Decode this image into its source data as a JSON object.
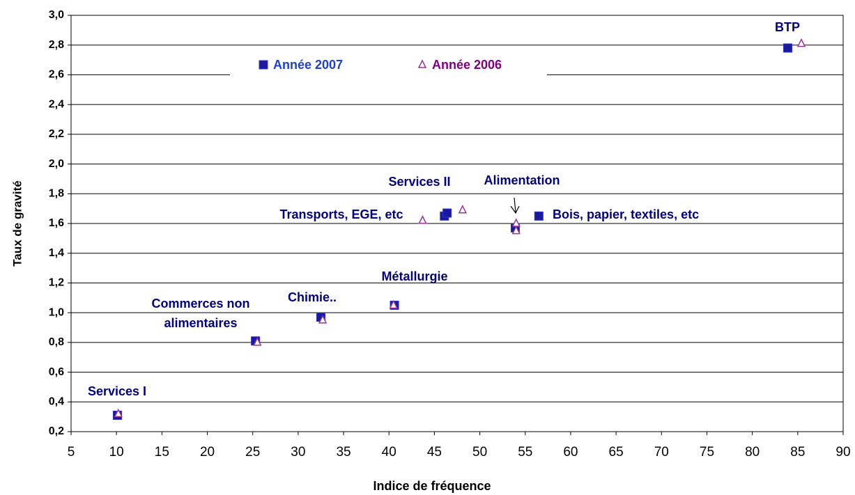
{
  "chart_data": {
    "type": "scatter",
    "xlabel": "Indice de fréquence",
    "ylabel": "Taux de gravité",
    "xlim": [
      5,
      90
    ],
    "xticks": [
      5,
      10,
      15,
      20,
      25,
      30,
      35,
      40,
      45,
      50,
      55,
      60,
      65,
      70,
      75,
      80,
      85,
      90
    ],
    "ylim": [
      0.2,
      3.0
    ],
    "yticks": [
      {
        "value": 0.2,
        "label": "0,2"
      },
      {
        "value": 0.4,
        "label": "0,4"
      },
      {
        "value": 0.6,
        "label": "0,6"
      },
      {
        "value": 0.8,
        "label": "0,8"
      },
      {
        "value": 1.0,
        "label": "1,0"
      },
      {
        "value": 1.2,
        "label": "1,2"
      },
      {
        "value": 1.4,
        "label": "1,4"
      },
      {
        "value": 1.6,
        "label": "1,6"
      },
      {
        "value": 1.8,
        "label": "1,8"
      },
      {
        "value": 2.0,
        "label": "2,0"
      },
      {
        "value": 2.2,
        "label": "2,2"
      },
      {
        "value": 2.4,
        "label": "2,4"
      },
      {
        "value": 2.6,
        "label": "2,6"
      },
      {
        "value": 2.8,
        "label": "2,8"
      },
      {
        "value": 3.0,
        "label": "3,0"
      }
    ],
    "grid": true,
    "legend": "top",
    "series": [
      {
        "name": "Année 2007",
        "color": "#1a1a9e",
        "marker": "square",
        "x": [
          10.1,
          25.3,
          32.5,
          40.6,
          46.1,
          46.4,
          53.9,
          56.5,
          83.9
        ],
        "values": [
          0.31,
          0.81,
          0.97,
          1.05,
          1.65,
          1.67,
          1.57,
          1.65,
          2.78
        ]
      },
      {
        "name": "Année 2006",
        "color": "#993399",
        "marker": "triangle",
        "x": [
          10.2,
          25.5,
          32.7,
          40.5,
          43.7,
          48.1,
          54.0,
          54.0,
          85.4
        ],
        "values": [
          0.32,
          0.8,
          0.95,
          1.05,
          1.62,
          1.69,
          1.6,
          1.55,
          2.81
        ]
      }
    ],
    "annotations": [
      "Services I",
      "Commerces non",
      "alimentaires",
      "Chimie..",
      "Métallurgie",
      "Transports, EGE, etc",
      "Services II",
      "Alimentation",
      "Bois, papier, textiles, etc",
      "BTP"
    ]
  }
}
